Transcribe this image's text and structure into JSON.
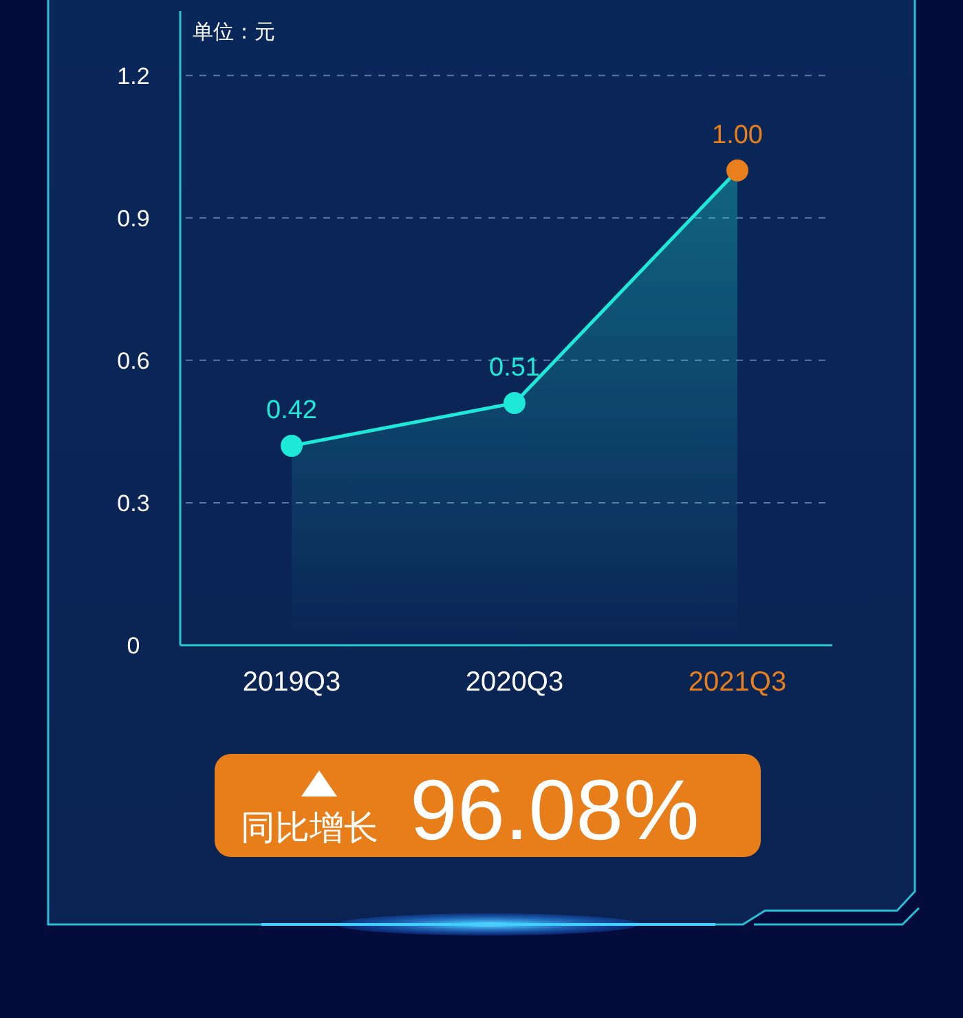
{
  "chart_data": {
    "type": "area",
    "ylabel": "单位：元",
    "categories": [
      "2019Q3",
      "2020Q3",
      "2021Q3"
    ],
    "series": [
      {
        "color": "#1ee8d8",
        "colors": [
          "#1ee8d8",
          "#1ee8d8",
          "#e97f1c"
        ],
        "values": [
          0.42,
          0.51,
          1.0
        ],
        "value_labels": [
          "0.42",
          "0.51",
          "1.00"
        ]
      }
    ],
    "ylim": [
      0,
      1.33
    ],
    "yticks": [
      0,
      0.3,
      0.6,
      0.9,
      1.2
    ],
    "grid": "y",
    "marker": "circle",
    "annotations": [
      "同比增长",
      "96.08%"
    ]
  }
}
